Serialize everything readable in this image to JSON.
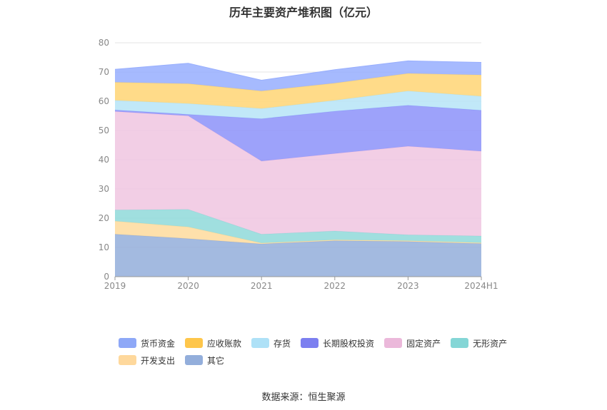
{
  "chart_data": {
    "type": "area",
    "stacked": true,
    "title": "历年主要资产堆积图（亿元）",
    "categories": [
      "2019",
      "2020",
      "2021",
      "2022",
      "2023",
      "2024H1"
    ],
    "ylim": [
      0,
      80
    ],
    "yticks": [
      0,
      10,
      20,
      30,
      40,
      50,
      60,
      70,
      80
    ],
    "grid": true,
    "legend_position": "bottom",
    "series": [
      {
        "name": "其它",
        "color": "#93aedb",
        "values": [
          14.5,
          13.0,
          11.2,
          12.3,
          12.0,
          11.3
        ]
      },
      {
        "name": "开发支出",
        "color": "#fedb9c",
        "values": [
          4.5,
          4.0,
          0.3,
          0.3,
          0.3,
          0.3
        ]
      },
      {
        "name": "无形资产",
        "color": "#8fd9d9",
        "values": [
          3.8,
          6.0,
          3.0,
          3.0,
          2.0,
          2.3
        ]
      },
      {
        "name": "固定资产",
        "color": "#f0c5e0",
        "values": [
          33.7,
          32.0,
          25.0,
          26.5,
          30.3,
          29.0
        ]
      },
      {
        "name": "长期股权投资",
        "color": "#8c92f9",
        "values": [
          0.5,
          0.5,
          14.5,
          14.5,
          14.0,
          14.0
        ]
      },
      {
        "name": "存货",
        "color": "#b6e4f7",
        "values": [
          3.3,
          3.7,
          3.5,
          3.7,
          4.9,
          4.8
        ]
      },
      {
        "name": "应收账款",
        "color": "#ffd574",
        "values": [
          6.2,
          6.8,
          6.0,
          5.9,
          6.0,
          7.3
        ]
      },
      {
        "name": "货币资金",
        "color": "#97aefe",
        "values": [
          4.4,
          7.0,
          3.7,
          4.6,
          4.3,
          4.3
        ]
      }
    ]
  },
  "legend": {
    "row1": [
      {
        "label": "货币资金",
        "color": "#8ea8f7"
      },
      {
        "label": "应收账款",
        "color": "#fec64b"
      },
      {
        "label": "存货",
        "color": "#aee1f7"
      },
      {
        "label": "长期股权投资",
        "color": "#7c7ff0"
      },
      {
        "label": "固定资产",
        "color": "#ebb8da"
      },
      {
        "label": "无形资产",
        "color": "#84d6d6"
      }
    ],
    "row2": [
      {
        "label": "开发支出",
        "color": "#fed89c"
      },
      {
        "label": "其它",
        "color": "#93aedb"
      }
    ]
  },
  "source": "数据来源：恒生聚源"
}
